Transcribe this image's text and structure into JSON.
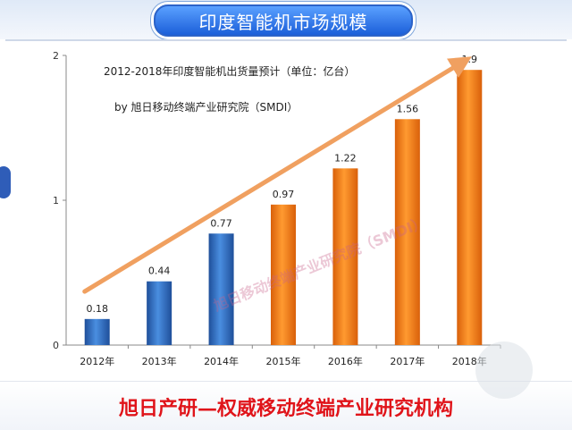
{
  "header": {
    "title": "印度智能机市场规模"
  },
  "footer": {
    "text": "旭日产研—权威移动终端产业研究机构"
  },
  "watermark": {
    "text": "旭日移动终端产业研究院（SMDI）"
  },
  "chart_data": {
    "type": "bar",
    "title": "2012-2018年印度智能机出货量预计（单位：亿台）",
    "subtitle": "by 旭日移动终端产业研究院（SMDI）",
    "categories": [
      "2012年",
      "2013年",
      "2014年",
      "2015年",
      "2016年",
      "2017年",
      "2018年"
    ],
    "values": [
      0.18,
      0.44,
      0.77,
      0.97,
      1.22,
      1.56,
      1.9
    ],
    "value_labels": [
      "0.18",
      "0.44",
      "0.77",
      "0.97",
      "1.22",
      "1.56",
      "1.9"
    ],
    "bar_colors": [
      "#2f6fc0",
      "#2f6fc0",
      "#2f6fc0",
      "#f07c10",
      "#f07c10",
      "#f07c10",
      "#f07c10"
    ],
    "ylim": [
      0,
      2
    ],
    "yticks": [
      "0",
      "1",
      "2"
    ],
    "grid": false,
    "trend_arrow_color": "#f0a060"
  }
}
